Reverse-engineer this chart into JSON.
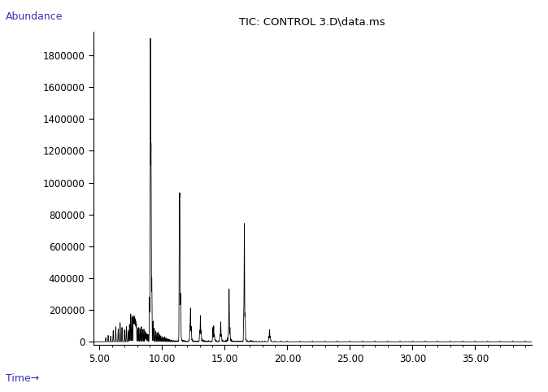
{
  "title": "TIC: CONTROL 3.D山data.ms",
  "title_display": "TIC: CONTROL 3.D¿data.ms",
  "title_text": "TIC: CONTROL 3.D\\data.ms",
  "xlabel": "Time→",
  "ylabel": "Abundance",
  "xlim": [
    4.5,
    39.5
  ],
  "ylim": [
    -20000,
    1950000
  ],
  "xticks": [
    5.0,
    10.0,
    15.0,
    20.0,
    25.0,
    30.0,
    35.0
  ],
  "yticks": [
    0,
    200000,
    400000,
    600000,
    800000,
    1000000,
    1200000,
    1400000,
    1600000,
    1800000
  ],
  "line_color": "#000000",
  "background_color": "#ffffff",
  "title_color": "#000000",
  "label_color": "#3333bb",
  "peaks": [
    [
      5.5,
      25000
    ],
    [
      5.7,
      40000
    ],
    [
      5.9,
      35000
    ],
    [
      6.1,
      70000
    ],
    [
      6.3,
      95000
    ],
    [
      6.5,
      80000
    ],
    [
      6.65,
      120000
    ],
    [
      6.8,
      90000
    ],
    [
      7.0,
      75000
    ],
    [
      7.15,
      95000
    ],
    [
      7.3,
      70000
    ],
    [
      7.4,
      110000
    ],
    [
      7.5,
      175000
    ],
    [
      7.6,
      155000
    ],
    [
      7.7,
      160000
    ],
    [
      7.75,
      140000
    ],
    [
      7.8,
      155000
    ],
    [
      7.85,
      140000
    ],
    [
      7.9,
      125000
    ],
    [
      7.95,
      110000
    ],
    [
      8.05,
      85000
    ],
    [
      8.15,
      90000
    ],
    [
      8.25,
      80000
    ],
    [
      8.35,
      95000
    ],
    [
      8.45,
      75000
    ],
    [
      8.55,
      80000
    ],
    [
      8.65,
      65000
    ],
    [
      8.72,
      55000
    ],
    [
      8.8,
      50000
    ],
    [
      8.88,
      45000
    ],
    [
      9.0,
      280000
    ],
    [
      9.07,
      1880000
    ],
    [
      9.12,
      1200000
    ],
    [
      9.18,
      400000
    ],
    [
      9.28,
      130000
    ],
    [
      9.38,
      85000
    ],
    [
      9.5,
      65000
    ],
    [
      9.6,
      55000
    ],
    [
      9.7,
      60000
    ],
    [
      9.8,
      45000
    ],
    [
      9.9,
      38000
    ],
    [
      10.0,
      32000
    ],
    [
      10.1,
      28000
    ],
    [
      10.2,
      32000
    ],
    [
      10.3,
      25000
    ],
    [
      10.4,
      20000
    ],
    [
      10.5,
      18000
    ],
    [
      10.6,
      15000
    ],
    [
      10.7,
      12000
    ],
    [
      10.8,
      10000
    ],
    [
      10.9,
      8000
    ],
    [
      11.0,
      7000
    ],
    [
      11.1,
      8000
    ],
    [
      11.2,
      6000
    ],
    [
      11.28,
      8000
    ],
    [
      11.38,
      840000
    ],
    [
      11.42,
      840000
    ],
    [
      11.48,
      300000
    ],
    [
      11.53,
      35000
    ],
    [
      11.6,
      12000
    ],
    [
      11.7,
      9000
    ],
    [
      11.8,
      8000
    ],
    [
      11.9,
      6000
    ],
    [
      12.0,
      5000
    ],
    [
      12.15,
      12000
    ],
    [
      12.22,
      95000
    ],
    [
      12.27,
      210000
    ],
    [
      12.33,
      95000
    ],
    [
      12.4,
      18000
    ],
    [
      12.5,
      8000
    ],
    [
      12.6,
      6000
    ],
    [
      12.7,
      5000
    ],
    [
      12.8,
      6000
    ],
    [
      12.9,
      5000
    ],
    [
      13.0,
      70000
    ],
    [
      13.06,
      165000
    ],
    [
      13.12,
      70000
    ],
    [
      13.2,
      18000
    ],
    [
      13.3,
      10000
    ],
    [
      13.4,
      8000
    ],
    [
      13.5,
      6000
    ],
    [
      13.6,
      5000
    ],
    [
      13.7,
      8000
    ],
    [
      13.8,
      5000
    ],
    [
      13.9,
      5000
    ],
    [
      14.05,
      90000
    ],
    [
      14.12,
      100000
    ],
    [
      14.18,
      45000
    ],
    [
      14.25,
      15000
    ],
    [
      14.35,
      8000
    ],
    [
      14.5,
      6000
    ],
    [
      14.62,
      45000
    ],
    [
      14.68,
      125000
    ],
    [
      14.74,
      45000
    ],
    [
      14.82,
      12000
    ],
    [
      14.9,
      7000
    ],
    [
      15.0,
      5000
    ],
    [
      15.1,
      12000
    ],
    [
      15.22,
      25000
    ],
    [
      15.3,
      75000
    ],
    [
      15.35,
      330000
    ],
    [
      15.42,
      90000
    ],
    [
      15.5,
      18000
    ],
    [
      15.6,
      8000
    ],
    [
      15.7,
      5000
    ],
    [
      15.8,
      5000
    ],
    [
      15.9,
      5000
    ],
    [
      16.0,
      5000
    ],
    [
      16.1,
      5000
    ],
    [
      16.2,
      5000
    ],
    [
      16.3,
      5000
    ],
    [
      16.4,
      5000
    ],
    [
      16.52,
      180000
    ],
    [
      16.57,
      740000
    ],
    [
      16.63,
      180000
    ],
    [
      16.7,
      18000
    ],
    [
      16.8,
      8000
    ],
    [
      16.9,
      5000
    ],
    [
      17.0,
      5000
    ],
    [
      17.1,
      10000
    ],
    [
      17.2,
      6000
    ],
    [
      17.3,
      5000
    ],
    [
      17.5,
      5000
    ],
    [
      17.8,
      5000
    ],
    [
      18.0,
      5000
    ],
    [
      18.2,
      5000
    ],
    [
      18.52,
      35000
    ],
    [
      18.58,
      75000
    ],
    [
      18.64,
      35000
    ],
    [
      18.72,
      7000
    ],
    [
      19.0,
      5000
    ],
    [
      19.5,
      5000
    ],
    [
      20.0,
      5000
    ],
    [
      21.0,
      5000
    ],
    [
      22.0,
      5000
    ],
    [
      23.0,
      5000
    ],
    [
      24.0,
      5000
    ],
    [
      25.0,
      5000
    ],
    [
      26.0,
      5000
    ],
    [
      27.0,
      5000
    ],
    [
      28.0,
      5000
    ],
    [
      29.0,
      5000
    ],
    [
      30.0,
      5000
    ],
    [
      31.0,
      5000
    ],
    [
      32.0,
      5000
    ],
    [
      33.0,
      5000
    ],
    [
      34.0,
      5000
    ],
    [
      35.0,
      5000
    ],
    [
      36.0,
      5000
    ],
    [
      37.0,
      5000
    ],
    [
      38.0,
      5000
    ],
    [
      39.0,
      5000
    ]
  ]
}
